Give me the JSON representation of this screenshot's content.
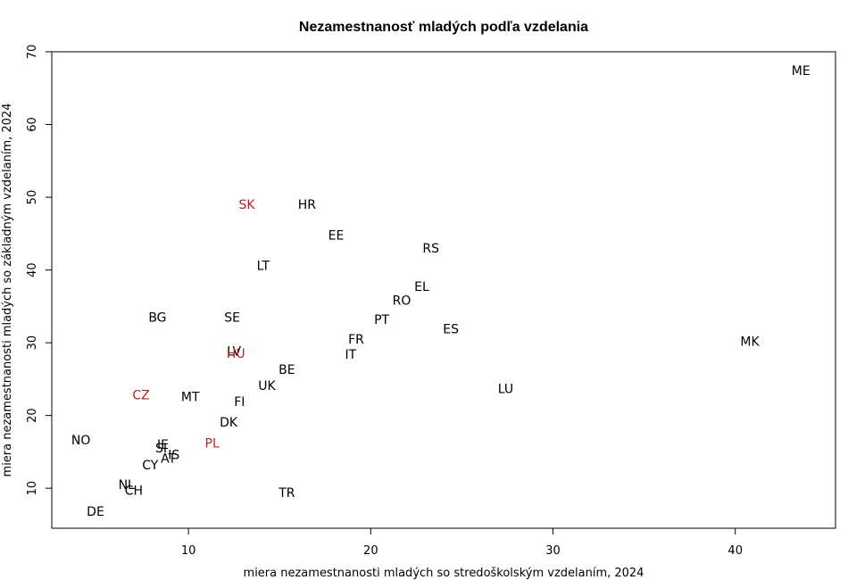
{
  "chart_data": {
    "type": "scatter",
    "title": "Nezamestnanosť mladých podľa vzdelania",
    "xlabel": "miera nezamestnanosti mladých so stredoškolským vzdelaním, 2024",
    "ylabel": "miera nezamestnanosti mladých so základným vzdelaním, 2024",
    "xlim": [
      2.5,
      45.5
    ],
    "ylim": [
      4.5,
      70
    ],
    "xticks": [
      10,
      20,
      30,
      40
    ],
    "yticks": [
      10,
      20,
      30,
      40,
      50,
      60,
      70
    ],
    "grid": false,
    "default_color": "#000000",
    "highlight_color": "#b22222",
    "points": [
      {
        "label": "ME",
        "x": 43.6,
        "y": 67.3,
        "highlight": false
      },
      {
        "label": "SK",
        "x": 13.2,
        "y": 48.9,
        "highlight": true
      },
      {
        "label": "HR",
        "x": 16.5,
        "y": 48.9,
        "highlight": false
      },
      {
        "label": "EE",
        "x": 18.1,
        "y": 44.7,
        "highlight": false
      },
      {
        "label": "RS",
        "x": 23.3,
        "y": 42.9,
        "highlight": false
      },
      {
        "label": "LT",
        "x": 14.1,
        "y": 40.5,
        "highlight": false
      },
      {
        "label": "EL",
        "x": 22.8,
        "y": 37.6,
        "highlight": false
      },
      {
        "label": "RO",
        "x": 21.7,
        "y": 35.7,
        "highlight": false
      },
      {
        "label": "BG",
        "x": 8.3,
        "y": 33.4,
        "highlight": false
      },
      {
        "label": "SE",
        "x": 12.4,
        "y": 33.4,
        "highlight": false
      },
      {
        "label": "PT",
        "x": 20.6,
        "y": 33.1,
        "highlight": false
      },
      {
        "label": "ES",
        "x": 24.4,
        "y": 31.8,
        "highlight": false
      },
      {
        "label": "FR",
        "x": 19.2,
        "y": 30.4,
        "highlight": false
      },
      {
        "label": "MK",
        "x": 40.8,
        "y": 30.1,
        "highlight": false
      },
      {
        "label": "LV",
        "x": 12.5,
        "y": 28.7,
        "highlight": false
      },
      {
        "label": "HU",
        "x": 12.6,
        "y": 28.4,
        "highlight": true
      },
      {
        "label": "IT",
        "x": 18.9,
        "y": 28.3,
        "highlight": false
      },
      {
        "label": "BE",
        "x": 15.4,
        "y": 26.2,
        "highlight": false
      },
      {
        "label": "UK",
        "x": 14.3,
        "y": 24.0,
        "highlight": false
      },
      {
        "label": "LU",
        "x": 27.4,
        "y": 23.6,
        "highlight": false
      },
      {
        "label": "CZ",
        "x": 7.4,
        "y": 22.7,
        "highlight": true
      },
      {
        "label": "MT",
        "x": 10.1,
        "y": 22.5,
        "highlight": false
      },
      {
        "label": "FI",
        "x": 12.8,
        "y": 21.8,
        "highlight": false
      },
      {
        "label": "DK",
        "x": 12.2,
        "y": 19.0,
        "highlight": false
      },
      {
        "label": "NO",
        "x": 4.1,
        "y": 16.5,
        "highlight": false
      },
      {
        "label": "PL",
        "x": 11.3,
        "y": 16.1,
        "highlight": true
      },
      {
        "label": "IE",
        "x": 8.6,
        "y": 15.9,
        "highlight": false
      },
      {
        "label": "SI",
        "x": 8.5,
        "y": 15.4,
        "highlight": false
      },
      {
        "label": "IS",
        "x": 9.2,
        "y": 14.5,
        "highlight": false
      },
      {
        "label": "AT",
        "x": 8.9,
        "y": 14.0,
        "highlight": false
      },
      {
        "label": "CY",
        "x": 7.9,
        "y": 13.1,
        "highlight": false
      },
      {
        "label": "NL",
        "x": 6.6,
        "y": 10.4,
        "highlight": false
      },
      {
        "label": "CH",
        "x": 7.0,
        "y": 9.6,
        "highlight": false
      },
      {
        "label": "TR",
        "x": 15.4,
        "y": 9.3,
        "highlight": false
      },
      {
        "label": "DE",
        "x": 4.9,
        "y": 6.7,
        "highlight": false
      }
    ]
  }
}
